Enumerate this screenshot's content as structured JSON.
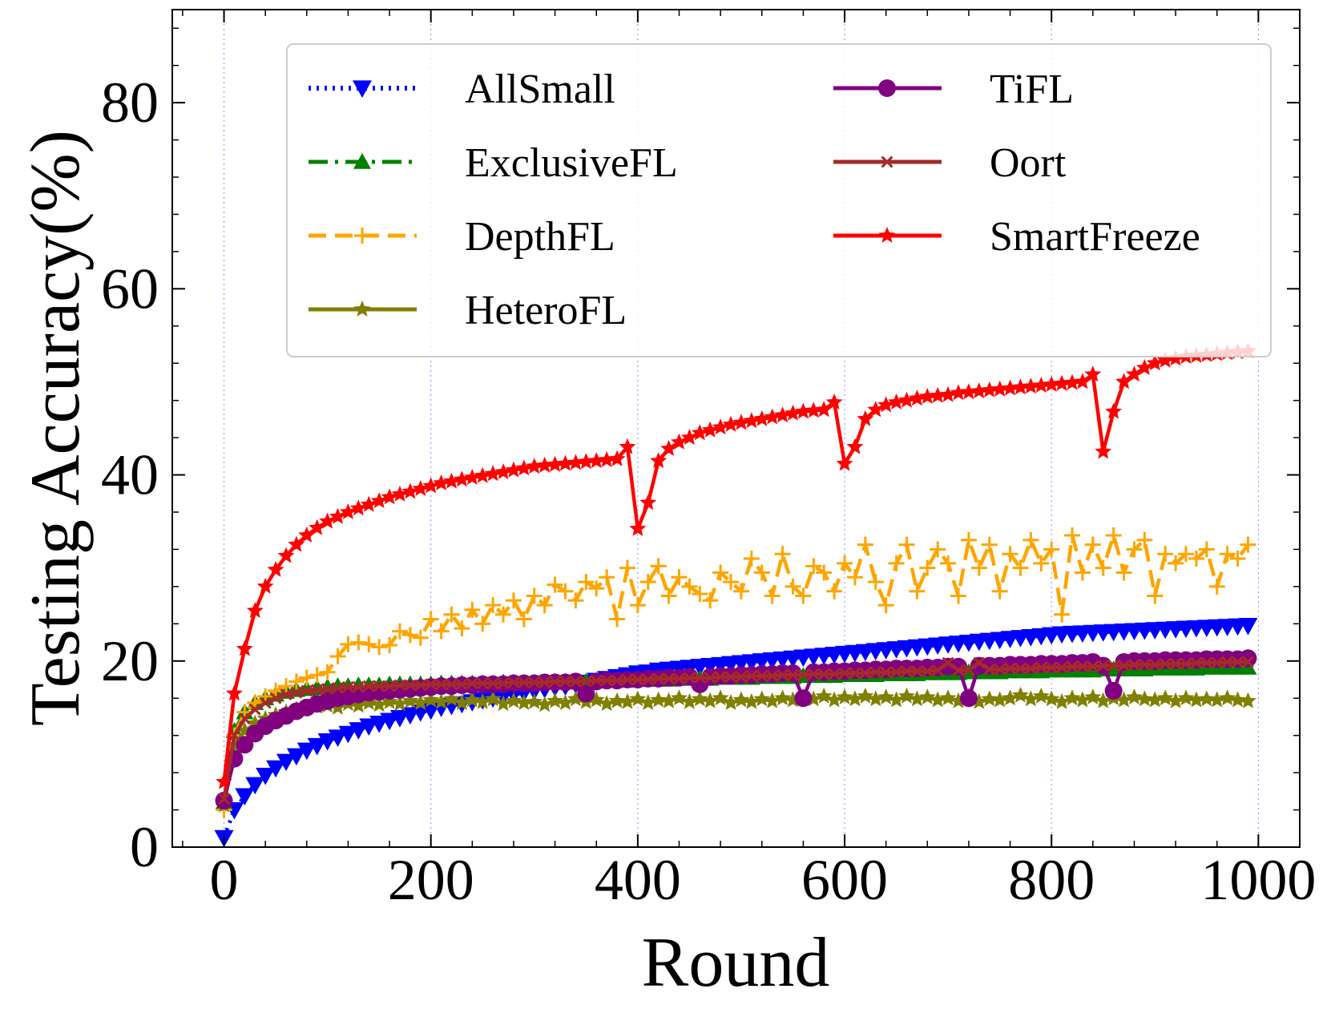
{
  "chart_data": {
    "type": "line",
    "title": "",
    "xlabel": "Round",
    "ylabel": "Testing Accuracy(%)",
    "xlim": [
      -50,
      1040
    ],
    "ylim": [
      0,
      90
    ],
    "xticks": [
      0,
      200,
      400,
      600,
      800,
      1000
    ],
    "yticks": [
      0,
      20,
      40,
      60,
      80
    ],
    "xtick_labels": [
      "0",
      "200",
      "400",
      "600",
      "800",
      "1000"
    ],
    "ytick_labels": [
      "0",
      "20",
      "40",
      "60",
      "80"
    ],
    "grid": "vertical dotted",
    "legend": "top, two columns",
    "x": [
      0,
      10,
      20,
      30,
      40,
      50,
      60,
      70,
      80,
      90,
      100,
      110,
      120,
      130,
      140,
      150,
      160,
      170,
      180,
      190,
      200,
      210,
      220,
      230,
      240,
      250,
      260,
      270,
      280,
      290,
      300,
      310,
      320,
      330,
      340,
      350,
      360,
      370,
      380,
      390,
      400,
      410,
      420,
      430,
      440,
      450,
      460,
      470,
      480,
      490,
      500,
      510,
      520,
      530,
      540,
      550,
      560,
      570,
      580,
      590,
      600,
      610,
      620,
      630,
      640,
      650,
      660,
      670,
      680,
      690,
      700,
      710,
      720,
      730,
      740,
      750,
      760,
      770,
      780,
      790,
      800,
      810,
      820,
      830,
      840,
      850,
      860,
      870,
      880,
      890,
      900,
      910,
      920,
      930,
      940,
      950,
      960,
      970,
      980,
      990
    ],
    "series": [
      {
        "name": "AllSmall",
        "color": "#0000ff",
        "marker": "triangle-down",
        "dash": "dotted",
        "values": [
          1.0,
          4.0,
          5.5,
          6.7,
          7.7,
          8.5,
          9.2,
          9.8,
          10.4,
          10.9,
          11.4,
          11.8,
          12.2,
          12.6,
          13.0,
          13.3,
          13.6,
          13.9,
          14.2,
          14.5,
          14.7,
          15.0,
          15.2,
          15.4,
          15.6,
          15.8,
          16.0,
          16.2,
          16.4,
          16.6,
          16.8,
          17.0,
          17.2,
          17.3,
          17.5,
          17.7,
          17.9,
          18.1,
          18.3,
          18.5,
          18.7,
          18.8,
          19.0,
          19.1,
          19.2,
          19.3,
          19.4,
          19.5,
          19.6,
          19.7,
          19.8,
          19.9,
          20.0,
          20.1,
          20.2,
          20.3,
          20.4,
          20.5,
          20.6,
          20.7,
          20.8,
          20.9,
          21.0,
          21.1,
          21.2,
          21.3,
          21.4,
          21.5,
          21.6,
          21.7,
          21.8,
          21.9,
          22.0,
          22.1,
          22.2,
          22.3,
          22.4,
          22.5,
          22.6,
          22.7,
          22.8,
          22.9,
          22.95,
          23.0,
          23.05,
          23.1,
          23.15,
          23.2,
          23.25,
          23.3,
          23.35,
          23.4,
          23.45,
          23.5,
          23.55,
          23.6,
          23.65,
          23.7,
          23.75,
          23.8
        ]
      },
      {
        "name": "ExclusiveFL",
        "color": "#008000",
        "marker": "triangle-up",
        "dash": "dashdot",
        "values": [
          4.8,
          12.5,
          14.5,
          15.5,
          16.0,
          16.4,
          16.7,
          16.9,
          17.0,
          17.1,
          17.2,
          17.3,
          17.3,
          17.4,
          17.4,
          17.4,
          17.5,
          17.5,
          17.5,
          17.5,
          17.5,
          17.6,
          17.6,
          17.6,
          17.6,
          17.6,
          17.6,
          17.7,
          17.7,
          17.7,
          17.7,
          17.7,
          17.8,
          17.8,
          17.8,
          17.8,
          17.9,
          17.9,
          17.9,
          17.9,
          18.0,
          18.0,
          18.0,
          18.0,
          18.1,
          18.1,
          18.1,
          18.1,
          18.2,
          18.2,
          18.2,
          18.2,
          18.3,
          18.3,
          18.3,
          18.3,
          18.4,
          18.4,
          18.4,
          18.4,
          18.5,
          18.5,
          18.5,
          18.5,
          18.6,
          18.6,
          18.6,
          18.6,
          18.7,
          18.7,
          18.7,
          18.7,
          18.8,
          18.8,
          18.8,
          18.8,
          18.9,
          18.9,
          18.9,
          18.9,
          19.0,
          19.0,
          19.0,
          19.0,
          19.0,
          19.1,
          19.1,
          19.1,
          19.1,
          19.1,
          19.2,
          19.2,
          19.2,
          19.2,
          19.2,
          19.3,
          19.3,
          19.3,
          19.3,
          19.3
        ]
      },
      {
        "name": "DepthFL",
        "color": "#ffa500",
        "marker": "plus",
        "dash": "dashed",
        "values": [
          4.0,
          12.0,
          14.5,
          15.5,
          16.2,
          16.8,
          17.3,
          17.8,
          18.2,
          18.5,
          18.8,
          20.5,
          21.8,
          22.0,
          21.8,
          21.5,
          21.7,
          23.2,
          22.8,
          22.5,
          24.5,
          23.2,
          25.0,
          23.5,
          25.5,
          24.0,
          26.0,
          25.0,
          26.5,
          24.5,
          27.0,
          26.0,
          28.2,
          27.5,
          26.5,
          28.5,
          27.8,
          29.0,
          24.5,
          30.0,
          26.0,
          28.5,
          30.2,
          27.0,
          29.0,
          28.0,
          27.2,
          26.5,
          29.5,
          28.5,
          27.5,
          31.0,
          29.5,
          27.0,
          31.5,
          28.0,
          27.0,
          30.2,
          29.5,
          27.5,
          30.5,
          29.0,
          32.5,
          28.5,
          26.0,
          30.5,
          32.5,
          27.5,
          30.0,
          32.0,
          30.5,
          27.0,
          33.0,
          30.0,
          32.5,
          27.5,
          31.5,
          30.0,
          33.0,
          30.5,
          32.0,
          25.0,
          33.5,
          29.5,
          32.5,
          30.0,
          33.5,
          29.5,
          32.0,
          33.0,
          27.0,
          31.5,
          30.5,
          31.5,
          31.0,
          32.0,
          28.0,
          31.5,
          31.0,
          32.5
        ]
      },
      {
        "name": "HeteroFL",
        "color": "#808000",
        "marker": "star",
        "dash": "solid",
        "values": [
          4.5,
          11.0,
          12.5,
          13.3,
          13.8,
          14.2,
          14.5,
          14.8,
          15.0,
          15.1,
          15.2,
          15.0,
          15.4,
          15.2,
          15.5,
          15.3,
          15.6,
          15.4,
          15.7,
          15.5,
          15.8,
          15.6,
          15.9,
          15.5,
          15.8,
          15.6,
          15.9,
          15.4,
          15.7,
          15.5,
          15.6,
          15.3,
          15.7,
          15.5,
          15.9,
          15.6,
          15.8,
          15.4,
          15.7,
          15.6,
          15.9,
          15.5,
          15.8,
          15.7,
          16.0,
          15.6,
          15.9,
          15.7,
          16.0,
          15.5,
          15.8,
          15.6,
          15.9,
          15.7,
          16.0,
          15.8,
          16.1,
          15.9,
          16.2,
          15.8,
          16.1,
          15.9,
          16.2,
          15.9,
          16.1,
          15.8,
          16.2,
          15.9,
          16.1,
          15.8,
          16.0,
          15.7,
          16.2,
          15.6,
          15.9,
          15.8,
          16.0,
          16.3,
          15.9,
          16.2,
          15.9,
          15.6,
          16.0,
          15.8,
          16.1,
          15.7,
          16.0,
          15.8,
          16.1,
          15.9,
          15.8,
          16.0,
          15.7,
          16.0,
          15.8,
          15.9,
          15.8,
          16.0,
          15.8,
          15.7
        ]
      },
      {
        "name": "TiFL",
        "color": "#800080",
        "marker": "circle",
        "dash": "solid",
        "values": [
          5.0,
          9.5,
          11.0,
          12.2,
          13.0,
          13.6,
          14.1,
          14.6,
          15.0,
          15.4,
          15.7,
          16.0,
          16.2,
          16.4,
          16.6,
          16.7,
          16.8,
          16.9,
          17.0,
          17.1,
          17.2,
          17.3,
          17.3,
          17.4,
          17.4,
          17.5,
          17.5,
          17.5,
          17.6,
          17.6,
          17.6,
          17.7,
          17.7,
          17.7,
          17.8,
          16.5,
          17.8,
          17.9,
          17.9,
          18.0,
          18.0,
          18.1,
          18.1,
          18.2,
          18.2,
          18.3,
          17.5,
          18.3,
          18.4,
          18.4,
          18.5,
          18.5,
          18.6,
          18.6,
          18.7,
          18.7,
          16.0,
          18.8,
          18.8,
          18.9,
          18.9,
          19.0,
          19.0,
          19.1,
          19.1,
          19.2,
          19.2,
          19.2,
          19.3,
          19.3,
          19.4,
          19.4,
          16.0,
          19.5,
          19.5,
          19.5,
          19.6,
          19.6,
          19.6,
          19.7,
          19.7,
          19.7,
          19.8,
          19.8,
          19.9,
          19.5,
          16.8,
          19.9,
          20.0,
          20.0,
          20.0,
          20.1,
          20.1,
          20.1,
          20.1,
          20.2,
          20.2,
          20.2,
          20.2,
          20.3
        ]
      },
      {
        "name": "Oort",
        "color": "#a52a2a",
        "marker": "x",
        "dash": "solid",
        "values": [
          5.2,
          12.0,
          13.8,
          14.8,
          15.5,
          16.0,
          16.4,
          16.6,
          16.8,
          16.9,
          17.0,
          17.1,
          17.2,
          17.2,
          17.3,
          17.3,
          17.3,
          17.4,
          17.4,
          17.4,
          17.5,
          17.5,
          17.5,
          17.5,
          17.6,
          17.6,
          17.6,
          17.6,
          17.7,
          17.7,
          17.7,
          17.7,
          17.8,
          17.8,
          17.8,
          17.8,
          17.9,
          17.9,
          17.9,
          18.0,
          18.0,
          18.0,
          18.1,
          18.1,
          18.1,
          18.2,
          18.2,
          18.2,
          18.3,
          18.3,
          18.3,
          18.4,
          18.4,
          18.4,
          18.5,
          18.5,
          18.5,
          18.6,
          18.6,
          18.6,
          18.7,
          18.7,
          18.7,
          18.8,
          18.8,
          18.8,
          18.9,
          18.9,
          18.9,
          19.0,
          19.8,
          19.0,
          19.0,
          19.8,
          19.1,
          19.1,
          19.2,
          19.2,
          19.2,
          19.3,
          19.3,
          19.3,
          19.4,
          19.4,
          19.4,
          19.5,
          19.5,
          19.5,
          19.6,
          19.6,
          19.6,
          19.7,
          19.7,
          19.7,
          19.8,
          19.8,
          19.8,
          19.9,
          19.9,
          19.9
        ]
      },
      {
        "name": "SmartFreeze",
        "color": "#ff0000",
        "marker": "star",
        "dash": "solid",
        "values": [
          7.0,
          16.5,
          21.3,
          25.4,
          28.0,
          29.8,
          31.3,
          32.5,
          33.5,
          34.3,
          35.0,
          35.5,
          36.0,
          36.4,
          36.8,
          37.2,
          37.6,
          37.9,
          38.2,
          38.5,
          38.8,
          39.1,
          39.3,
          39.5,
          39.7,
          39.9,
          40.1,
          40.3,
          40.5,
          40.7,
          40.9,
          41.0,
          41.1,
          41.2,
          41.3,
          41.4,
          41.5,
          41.6,
          41.7,
          43.0,
          34.2,
          37.0,
          41.5,
          42.8,
          43.5,
          44.0,
          44.5,
          44.8,
          45.1,
          45.4,
          45.6,
          45.8,
          46.0,
          46.2,
          46.4,
          46.6,
          46.8,
          46.9,
          47.0,
          47.8,
          41.2,
          43.0,
          46.0,
          47.0,
          47.5,
          47.8,
          48.0,
          48.2,
          48.4,
          48.5,
          48.6,
          48.8,
          48.9,
          49.0,
          49.1,
          49.2,
          49.3,
          49.4,
          49.5,
          49.6,
          49.7,
          49.8,
          49.9,
          50.0,
          50.8,
          42.5,
          46.8,
          50.0,
          50.8,
          51.5,
          52.0,
          52.3,
          52.5,
          52.7,
          52.8,
          52.9,
          53.0,
          53.1,
          53.2,
          53.3
        ]
      }
    ]
  }
}
